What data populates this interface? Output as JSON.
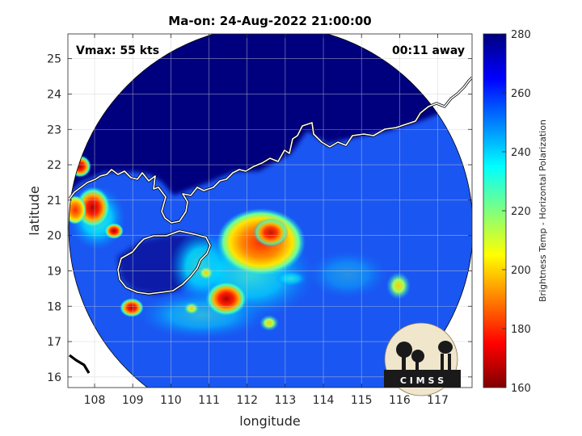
{
  "title": "Ma-on: 24-Aug-2022 21:00:00",
  "vmax_text": "Vmax: 55 kts",
  "away_text": "00:11 away",
  "xlabel": "longitude",
  "ylabel": "latitude",
  "colorbar_label": "Brightness Temp - Horizontal Polarization",
  "logo_text": "C I M S S",
  "x_ticks": [
    "108",
    "109",
    "110",
    "111",
    "112",
    "113",
    "114",
    "115",
    "116",
    "117"
  ],
  "y_ticks": [
    "16",
    "17",
    "18",
    "19",
    "20",
    "21",
    "22",
    "23",
    "24",
    "25"
  ],
  "colorbar_ticks": [
    "280",
    "260",
    "240",
    "220",
    "200",
    "180",
    "160"
  ],
  "chart_data": {
    "type": "heatmap",
    "title": "Ma-on: 24-Aug-2022 21:00:00",
    "xlabel": "longitude",
    "ylabel": "latitude",
    "xlim": [
      107.3,
      117.9
    ],
    "ylim": [
      15.7,
      25.7
    ],
    "colorbar": {
      "label": "Brightness Temp - Horizontal Polarization",
      "range": [
        160,
        280
      ],
      "colormap": "jet"
    },
    "background_value": 275,
    "features": [
      {
        "name": "central convection",
        "lon": 112.6,
        "lat": 19.8,
        "value": 195
      },
      {
        "name": "convective band",
        "lon": 111.7,
        "lat": 18.4,
        "value": 185
      },
      {
        "name": "outer cell",
        "lon": 109.0,
        "lat": 18.0,
        "value": 185
      },
      {
        "name": "coastal cell",
        "lon": 108.1,
        "lat": 22.0,
        "value": 175
      },
      {
        "name": "coastal cell",
        "lon": 108.4,
        "lat": 20.8,
        "value": 180
      },
      {
        "name": "outer cell",
        "lon": 116.0,
        "lat": 18.6,
        "value": 205
      },
      {
        "name": "outer cell",
        "lon": 112.9,
        "lat": 17.6,
        "value": 215
      }
    ]
  },
  "colors": {
    "background": "#ffffff",
    "swath_high": "#00007f",
    "swath_base": "#1a52f0",
    "coast": "#ffffff"
  }
}
